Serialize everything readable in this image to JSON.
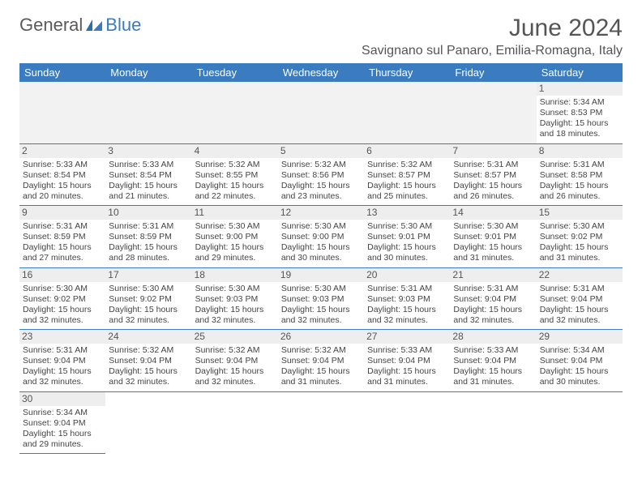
{
  "logo": {
    "text_a": "General",
    "text_b": "Blue"
  },
  "title": "June 2024",
  "location": "Savignano sul Panaro, Emilia-Romagna, Italy",
  "colors": {
    "header_bg": "#3b7bbf",
    "header_fg": "#ffffff",
    "daynum_bg": "#eeeeee",
    "empty_bg": "#f2f2f2",
    "border": "#3b7bbf",
    "text": "#444444"
  },
  "weekdays": [
    "Sunday",
    "Monday",
    "Tuesday",
    "Wednesday",
    "Thursday",
    "Friday",
    "Saturday"
  ],
  "leading_empty": 6,
  "days": [
    {
      "n": 1,
      "sr": "5:34 AM",
      "ss": "8:53 PM",
      "dlh": 15,
      "dlm": 18
    },
    {
      "n": 2,
      "sr": "5:33 AM",
      "ss": "8:54 PM",
      "dlh": 15,
      "dlm": 20
    },
    {
      "n": 3,
      "sr": "5:33 AM",
      "ss": "8:54 PM",
      "dlh": 15,
      "dlm": 21
    },
    {
      "n": 4,
      "sr": "5:32 AM",
      "ss": "8:55 PM",
      "dlh": 15,
      "dlm": 22
    },
    {
      "n": 5,
      "sr": "5:32 AM",
      "ss": "8:56 PM",
      "dlh": 15,
      "dlm": 23
    },
    {
      "n": 6,
      "sr": "5:32 AM",
      "ss": "8:57 PM",
      "dlh": 15,
      "dlm": 25
    },
    {
      "n": 7,
      "sr": "5:31 AM",
      "ss": "8:57 PM",
      "dlh": 15,
      "dlm": 26
    },
    {
      "n": 8,
      "sr": "5:31 AM",
      "ss": "8:58 PM",
      "dlh": 15,
      "dlm": 26
    },
    {
      "n": 9,
      "sr": "5:31 AM",
      "ss": "8:59 PM",
      "dlh": 15,
      "dlm": 27
    },
    {
      "n": 10,
      "sr": "5:31 AM",
      "ss": "8:59 PM",
      "dlh": 15,
      "dlm": 28
    },
    {
      "n": 11,
      "sr": "5:30 AM",
      "ss": "9:00 PM",
      "dlh": 15,
      "dlm": 29
    },
    {
      "n": 12,
      "sr": "5:30 AM",
      "ss": "9:00 PM",
      "dlh": 15,
      "dlm": 30
    },
    {
      "n": 13,
      "sr": "5:30 AM",
      "ss": "9:01 PM",
      "dlh": 15,
      "dlm": 30
    },
    {
      "n": 14,
      "sr": "5:30 AM",
      "ss": "9:01 PM",
      "dlh": 15,
      "dlm": 31
    },
    {
      "n": 15,
      "sr": "5:30 AM",
      "ss": "9:02 PM",
      "dlh": 15,
      "dlm": 31
    },
    {
      "n": 16,
      "sr": "5:30 AM",
      "ss": "9:02 PM",
      "dlh": 15,
      "dlm": 32
    },
    {
      "n": 17,
      "sr": "5:30 AM",
      "ss": "9:02 PM",
      "dlh": 15,
      "dlm": 32
    },
    {
      "n": 18,
      "sr": "5:30 AM",
      "ss": "9:03 PM",
      "dlh": 15,
      "dlm": 32
    },
    {
      "n": 19,
      "sr": "5:30 AM",
      "ss": "9:03 PM",
      "dlh": 15,
      "dlm": 32
    },
    {
      "n": 20,
      "sr": "5:31 AM",
      "ss": "9:03 PM",
      "dlh": 15,
      "dlm": 32
    },
    {
      "n": 21,
      "sr": "5:31 AM",
      "ss": "9:04 PM",
      "dlh": 15,
      "dlm": 32
    },
    {
      "n": 22,
      "sr": "5:31 AM",
      "ss": "9:04 PM",
      "dlh": 15,
      "dlm": 32
    },
    {
      "n": 23,
      "sr": "5:31 AM",
      "ss": "9:04 PM",
      "dlh": 15,
      "dlm": 32
    },
    {
      "n": 24,
      "sr": "5:32 AM",
      "ss": "9:04 PM",
      "dlh": 15,
      "dlm": 32
    },
    {
      "n": 25,
      "sr": "5:32 AM",
      "ss": "9:04 PM",
      "dlh": 15,
      "dlm": 32
    },
    {
      "n": 26,
      "sr": "5:32 AM",
      "ss": "9:04 PM",
      "dlh": 15,
      "dlm": 31
    },
    {
      "n": 27,
      "sr": "5:33 AM",
      "ss": "9:04 PM",
      "dlh": 15,
      "dlm": 31
    },
    {
      "n": 28,
      "sr": "5:33 AM",
      "ss": "9:04 PM",
      "dlh": 15,
      "dlm": 31
    },
    {
      "n": 29,
      "sr": "5:34 AM",
      "ss": "9:04 PM",
      "dlh": 15,
      "dlm": 30
    },
    {
      "n": 30,
      "sr": "5:34 AM",
      "ss": "9:04 PM",
      "dlh": 15,
      "dlm": 29
    }
  ],
  "labels": {
    "sunrise": "Sunrise:",
    "sunset": "Sunset:",
    "daylight": "Daylight:",
    "hours": "hours",
    "and": "and",
    "minutes": "minutes."
  }
}
